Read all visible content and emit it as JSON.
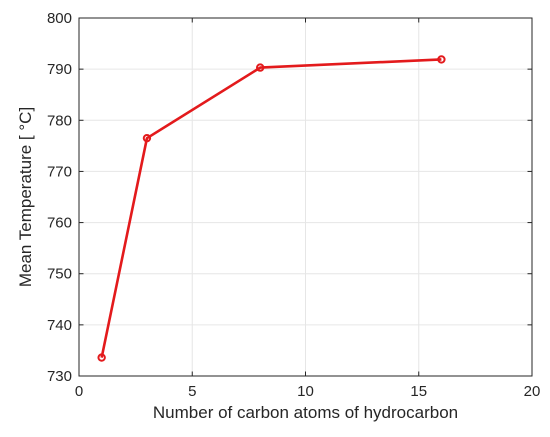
{
  "chart_data": {
    "type": "line",
    "title": "",
    "xlabel": "Number of carbon atoms of hydrocarbon",
    "ylabel": "Mean Temperature [ °C]",
    "xlim": [
      0,
      20
    ],
    "ylim": [
      730,
      800
    ],
    "xticks": [
      0,
      5,
      10,
      15,
      20
    ],
    "yticks": [
      730,
      740,
      750,
      760,
      770,
      780,
      790,
      800
    ],
    "xtick_labels": [
      "0",
      "5",
      "10",
      "15",
      "20"
    ],
    "ytick_labels": [
      "730",
      "740",
      "750",
      "760",
      "770",
      "780",
      "790",
      "800"
    ],
    "grid": true,
    "marker": "circle",
    "series": [
      {
        "color": "#e31a1c",
        "x": [
          1,
          3,
          8,
          16
        ],
        "y": [
          733.6,
          776.5,
          790.3,
          791.9
        ]
      }
    ]
  }
}
